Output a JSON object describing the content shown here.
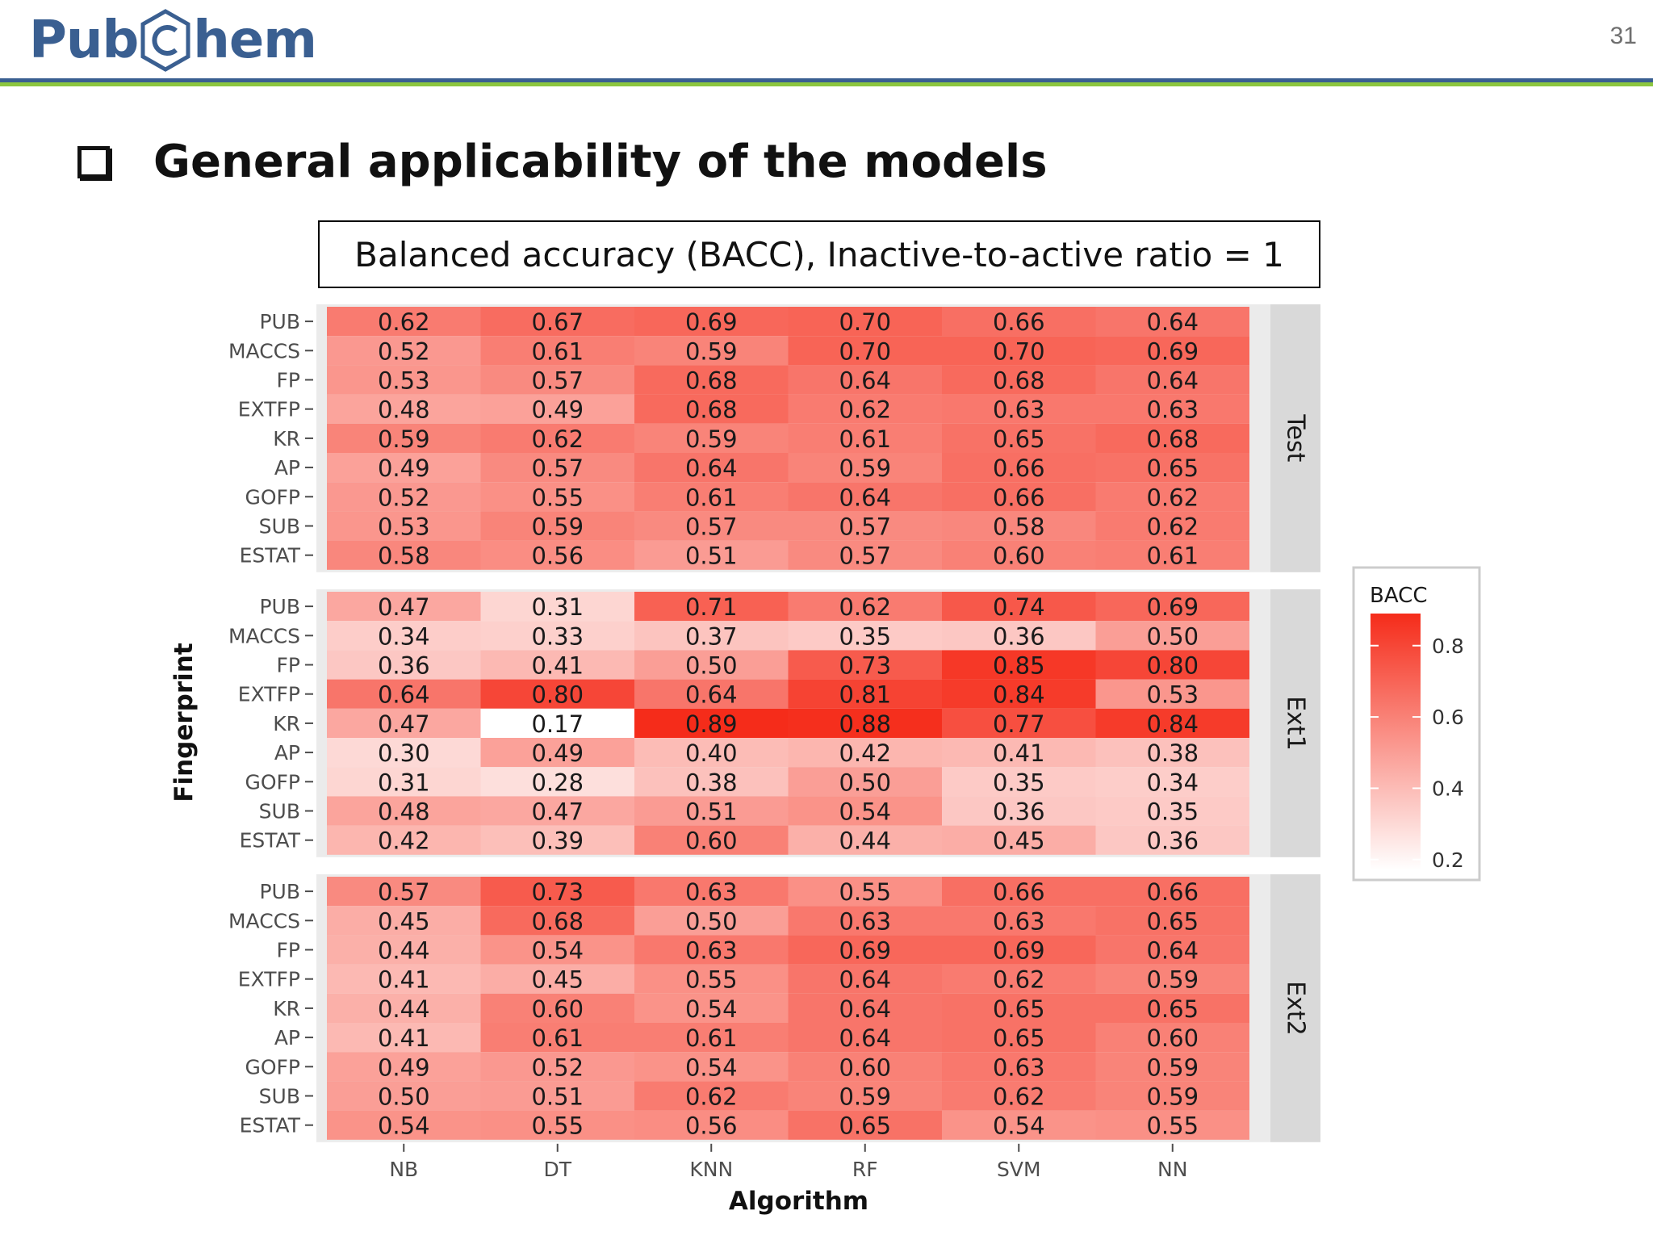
{
  "header": {
    "logo_left": "Pub",
    "logo_right": "hem",
    "page_number": "31"
  },
  "heading": "General applicability of the models",
  "caption": "Balanced accuracy (BACC), Inactive-to-active ratio = 1",
  "chart_data": {
    "type": "heatmap",
    "title": "",
    "xlabel": "Algorithm",
    "ylabel": "Fingerprint",
    "x": [
      "NB",
      "DT",
      "KNN",
      "RF",
      "SVM",
      "NN"
    ],
    "y": [
      "PUB",
      "MACCS",
      "FP",
      "EXTFP",
      "KR",
      "AP",
      "GOFP",
      "SUB",
      "ESTAT"
    ],
    "panels": [
      {
        "name": "Test",
        "values": [
          [
            0.62,
            0.67,
            0.69,
            0.7,
            0.66,
            0.64
          ],
          [
            0.52,
            0.61,
            0.59,
            0.7,
            0.7,
            0.69
          ],
          [
            0.53,
            0.57,
            0.68,
            0.64,
            0.68,
            0.64
          ],
          [
            0.48,
            0.49,
            0.68,
            0.62,
            0.63,
            0.63
          ],
          [
            0.59,
            0.62,
            0.59,
            0.61,
            0.65,
            0.68
          ],
          [
            0.49,
            0.57,
            0.64,
            0.59,
            0.66,
            0.65
          ],
          [
            0.52,
            0.55,
            0.61,
            0.64,
            0.66,
            0.62
          ],
          [
            0.53,
            0.59,
            0.57,
            0.57,
            0.58,
            0.62
          ],
          [
            0.58,
            0.56,
            0.51,
            0.57,
            0.6,
            0.61
          ]
        ]
      },
      {
        "name": "Ext1",
        "values": [
          [
            0.47,
            0.31,
            0.71,
            0.62,
            0.74,
            0.69
          ],
          [
            0.34,
            0.33,
            0.37,
            0.35,
            0.36,
            0.5
          ],
          [
            0.36,
            0.41,
            0.5,
            0.73,
            0.85,
            0.8
          ],
          [
            0.64,
            0.8,
            0.64,
            0.81,
            0.84,
            0.53
          ],
          [
            0.47,
            0.17,
            0.89,
            0.88,
            0.77,
            0.84
          ],
          [
            0.3,
            0.49,
            0.4,
            0.42,
            0.41,
            0.38
          ],
          [
            0.31,
            0.28,
            0.38,
            0.5,
            0.35,
            0.34
          ],
          [
            0.48,
            0.47,
            0.51,
            0.54,
            0.36,
            0.35
          ],
          [
            0.42,
            0.39,
            0.6,
            0.44,
            0.45,
            0.36
          ]
        ]
      },
      {
        "name": "Ext2",
        "values": [
          [
            0.57,
            0.73,
            0.63,
            0.55,
            0.66,
            0.66
          ],
          [
            0.45,
            0.68,
            0.5,
            0.63,
            0.63,
            0.65
          ],
          [
            0.44,
            0.54,
            0.63,
            0.69,
            0.69,
            0.64
          ],
          [
            0.41,
            0.45,
            0.55,
            0.64,
            0.62,
            0.59
          ],
          [
            0.44,
            0.6,
            0.54,
            0.64,
            0.65,
            0.65
          ],
          [
            0.41,
            0.61,
            0.61,
            0.64,
            0.65,
            0.6
          ],
          [
            0.49,
            0.52,
            0.54,
            0.6,
            0.63,
            0.59
          ],
          [
            0.5,
            0.51,
            0.62,
            0.59,
            0.62,
            0.59
          ],
          [
            0.54,
            0.55,
            0.56,
            0.65,
            0.54,
            0.55
          ]
        ]
      }
    ],
    "legend": {
      "title": "BACC",
      "ticks": [
        "0.8",
        "0.6",
        "0.4",
        "0.2"
      ],
      "range": [
        0.17,
        0.89
      ],
      "placement": "right"
    },
    "colors": {
      "low": "#ffffff",
      "high": "#f52c1a",
      "strip": "#d9d9d9",
      "panel_bg": "#ebebeb"
    }
  }
}
